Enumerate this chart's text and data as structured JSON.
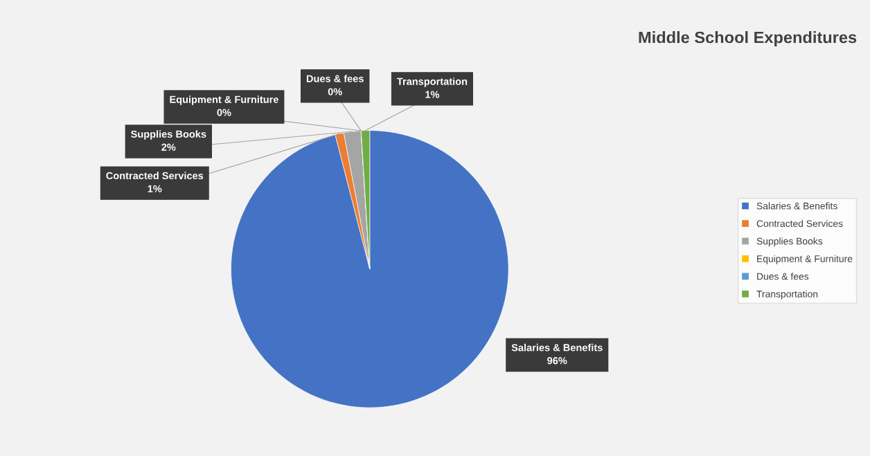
{
  "chart_data": {
    "type": "pie",
    "title": "Middle School Expenditures",
    "categories": [
      "Salaries & Benefits",
      "Contracted Services",
      "Supplies Books",
      "Equipment & Furniture",
      "Dues & fees",
      "Transportation"
    ],
    "values": [
      96,
      1,
      2,
      0,
      0,
      1
    ],
    "colors": [
      "#4472c4",
      "#ed7d31",
      "#a5a5a5",
      "#ffc000",
      "#5b9bd5",
      "#70ad47"
    ],
    "value_labels": [
      "96%",
      "1%",
      "2%",
      "0%",
      "0%",
      "1%"
    ],
    "legend": "right"
  }
}
